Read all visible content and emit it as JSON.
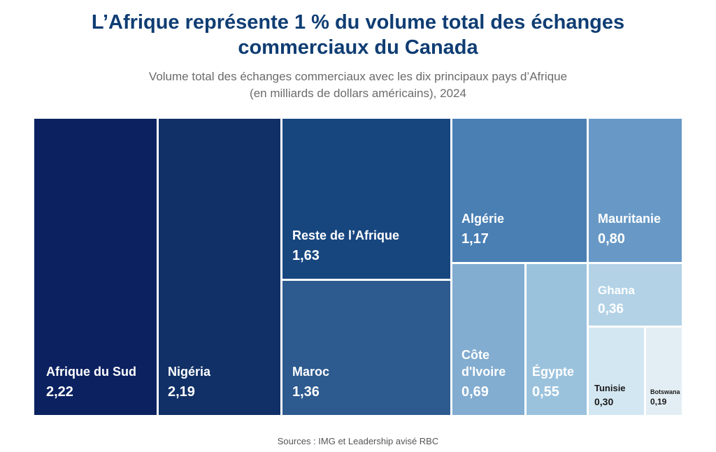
{
  "header": {
    "title_line1": "L’Afrique représente 1 % du volume total des échanges",
    "title_line2": "commerciaux du Canada",
    "subtitle_line1": "Volume total des échanges commerciaux avec les dix principaux pays d’Afrique",
    "subtitle_line2": "(en milliards de dollars américains), 2024"
  },
  "footer": {
    "source": "Sources : IMG et Leadership avisé RBC"
  },
  "chart_data": {
    "type": "treemap",
    "title": "L’Afrique représente 1 % du volume total des échanges commerciaux du Canada",
    "subtitle": "Volume total des échanges commerciaux avec les dix principaux pays d’Afrique (en milliards de dollars américains), 2024",
    "items": [
      {
        "name": "Afrique du Sud",
        "name_lines": [
          "Afrique du Sud"
        ],
        "label": "2,22",
        "value": 2.22,
        "color": "#0b2160",
        "text_color": "#ffffff"
      },
      {
        "name": "Nigéria",
        "name_lines": [
          "Nigéria"
        ],
        "label": "2,19",
        "value": 2.19,
        "color": "#103067",
        "text_color": "#ffffff"
      },
      {
        "name": "Reste de l’Afrique",
        "name_lines": [
          "Reste de l’Afrique"
        ],
        "label": "1,63",
        "value": 1.63,
        "color": "#17467f",
        "text_color": "#ffffff"
      },
      {
        "name": "Maroc",
        "name_lines": [
          "Maroc"
        ],
        "label": "1,36",
        "value": 1.36,
        "color": "#2d5a8f",
        "text_color": "#ffffff"
      },
      {
        "name": "Algérie",
        "name_lines": [
          "Algérie"
        ],
        "label": "1,17",
        "value": 1.17,
        "color": "#4a7fb4",
        "text_color": "#ffffff"
      },
      {
        "name": "Mauritanie",
        "name_lines": [
          "Mauritanie"
        ],
        "label": "0,80",
        "value": 0.8,
        "color": "#6899c6",
        "text_color": "#ffffff"
      },
      {
        "name": "Côte d'Ivoire",
        "name_lines": [
          "Côte",
          "d'Ivoire"
        ],
        "label": "0,69",
        "value": 0.69,
        "color": "#82acd0",
        "text_color": "#ffffff"
      },
      {
        "name": "Égypte",
        "name_lines": [
          "Égypte"
        ],
        "label": "0,55",
        "value": 0.55,
        "color": "#9bc2dd",
        "text_color": "#ffffff"
      },
      {
        "name": "Ghana",
        "name_lines": [
          "Ghana"
        ],
        "label": "0,36",
        "value": 0.36,
        "color": "#b3d2e6",
        "text_color": "#ffffff"
      },
      {
        "name": "Tunisie",
        "name_lines": [
          "Tunisie"
        ],
        "label": "0,30",
        "value": 0.3,
        "color": "#d3e7f2",
        "text_color": "#1a1a1a"
      },
      {
        "name": "Botswana",
        "name_lines": [
          "Botswana"
        ],
        "label": "0,19",
        "value": 0.19,
        "color": "#e3eef4",
        "text_color": "#1a1a1a"
      }
    ]
  }
}
